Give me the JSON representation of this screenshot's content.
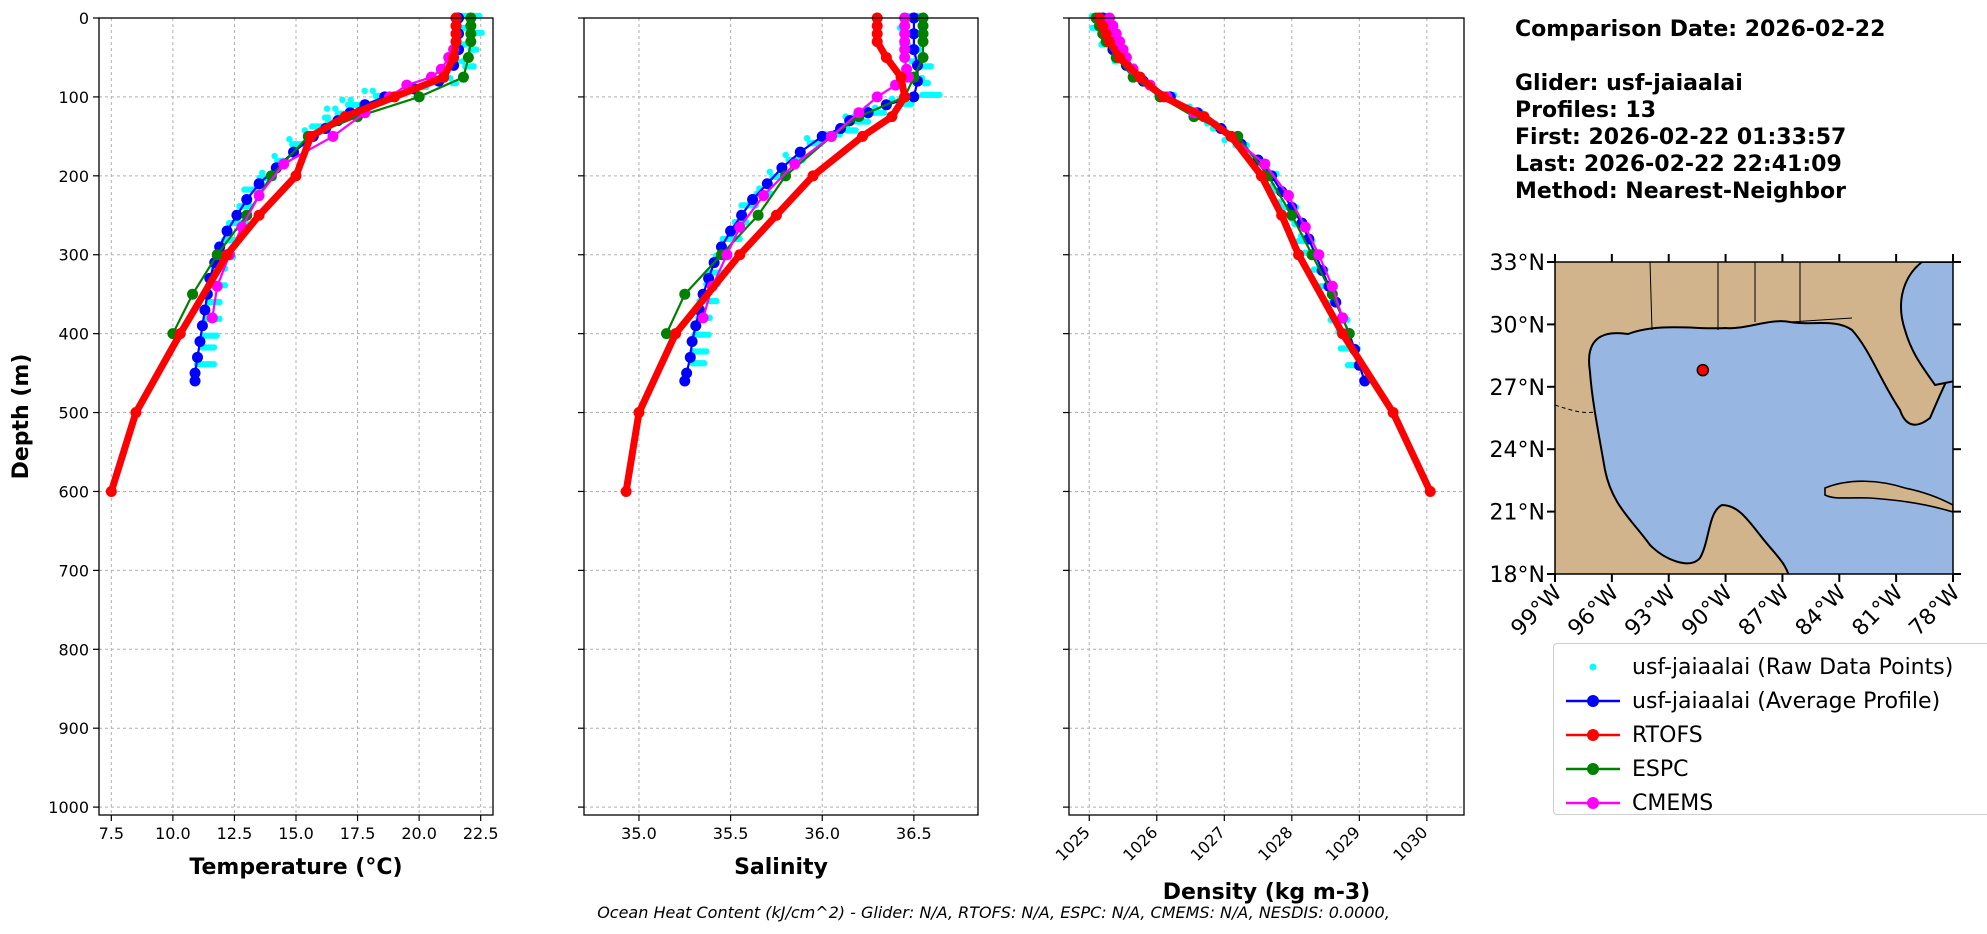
{
  "chart_data": {
    "type": "line",
    "shared_y": {
      "label": "Depth (m)",
      "ylim": [
        1010,
        0
      ],
      "ticks": [
        0,
        100,
        200,
        300,
        400,
        500,
        600,
        700,
        800,
        900,
        1000
      ],
      "grid": true
    },
    "panels": [
      {
        "id": "temperature",
        "xlabel": "Temperature (°C)",
        "xlim": [
          7.0,
          23.0
        ],
        "xticks": [
          7.5,
          10.0,
          12.5,
          15.0,
          17.5,
          20.0,
          22.5
        ],
        "tick_labels": [
          "7.5",
          "10.0",
          "12.5",
          "15.0",
          "17.5",
          "20.0",
          "22.5"
        ],
        "series": [
          {
            "name": "usf-jaiaalai (Raw Data Points)",
            "depth": [
              0,
              20,
              40,
              60,
              80,
              90,
              100,
              110,
              120,
              130,
              140,
              150,
              160,
              180,
              200,
              220,
              240,
              260,
              280,
              300,
              320,
              340,
              360,
              380,
              400,
              420,
              440
            ],
            "values": [
              22.2,
              22.2,
              22.1,
              21.9,
              21.3,
              20.0,
              18.3,
              17.3,
              16.8,
              16.4,
              16.0,
              15.6,
              15.1,
              14.4,
              13.8,
              13.2,
              12.9,
              12.6,
              12.3,
              12.1,
              11.9,
              11.8,
              11.7,
              11.6,
              11.5,
              11.4,
              11.3
            ]
          },
          {
            "name": "usf-jaiaalai (Average Profile)",
            "depth": [
              0,
              20,
              40,
              60,
              80,
              90,
              100,
              110,
              120,
              130,
              140,
              150,
              170,
              190,
              210,
              230,
              250,
              270,
              290,
              310,
              330,
              350,
              370,
              390,
              410,
              430,
              450,
              460
            ],
            "values": [
              21.6,
              21.6,
              21.6,
              21.4,
              20.8,
              19.8,
              18.6,
              17.8,
              17.2,
              16.7,
              16.2,
              15.7,
              14.9,
              14.2,
              13.5,
              13.0,
              12.6,
              12.2,
              11.9,
              11.7,
              11.5,
              11.4,
              11.3,
              11.2,
              11.1,
              11.0,
              10.9,
              10.9
            ]
          },
          {
            "name": "RTOFS",
            "depth": [
              0,
              10,
              20,
              30,
              50,
              75,
              100,
              125,
              150,
              200,
              250,
              300,
              400,
              500,
              600
            ],
            "values": [
              21.5,
              21.5,
              21.5,
              21.5,
              21.4,
              21.0,
              19.0,
              17.0,
              15.6,
              15.0,
              13.5,
              12.2,
              10.3,
              8.5,
              7.5
            ]
          },
          {
            "name": "ESPC",
            "depth": [
              0,
              10,
              20,
              30,
              50,
              75,
              100,
              125,
              150,
              200,
              250,
              300,
              350,
              400
            ],
            "values": [
              22.1,
              22.1,
              22.1,
              22.1,
              22.0,
              21.8,
              20.0,
              17.5,
              15.5,
              14.0,
              13.0,
              11.8,
              10.8,
              10.0
            ]
          },
          {
            "name": "CMEMS",
            "depth": [
              0,
              10,
              20,
              30,
              40,
              50,
              65,
              75,
              85,
              100,
              120,
              150,
              185,
              225,
              265,
              300,
              340,
              380
            ],
            "values": [
              21.5,
              21.5,
              21.5,
              21.5,
              21.4,
              21.2,
              20.9,
              20.5,
              19.5,
              18.8,
              17.8,
              16.5,
              14.5,
              13.5,
              12.8,
              12.3,
              11.8,
              11.6
            ]
          }
        ]
      },
      {
        "id": "salinity",
        "xlabel": "Salinity",
        "xlim": [
          34.7,
          36.85
        ],
        "xticks": [
          35.0,
          35.5,
          36.0,
          36.5
        ],
        "tick_labels": [
          "35.0",
          "35.5",
          "36.0",
          "36.5"
        ],
        "series": [
          {
            "name": "usf-jaiaalai (Raw Data Points)",
            "depth": [
              0,
              20,
              40,
              60,
              80,
              100,
              110,
              120,
              130,
              140,
              150,
              160,
              180,
              200,
              220,
              240,
              260,
              280,
              300,
              320,
              340,
              360,
              380,
              400,
              420,
              440
            ],
            "values": [
              36.5,
              36.5,
              36.5,
              36.55,
              36.55,
              36.6,
              36.45,
              36.3,
              36.2,
              36.15,
              36.05,
              35.95,
              35.85,
              35.75,
              35.68,
              35.6,
              35.55,
              35.5,
              35.45,
              35.42,
              35.4,
              35.38,
              35.36,
              35.34,
              35.33,
              35.32
            ]
          },
          {
            "name": "usf-jaiaalai (Average Profile)",
            "depth": [
              0,
              20,
              40,
              60,
              80,
              100,
              110,
              120,
              130,
              140,
              150,
              170,
              190,
              210,
              230,
              250,
              270,
              290,
              310,
              330,
              350,
              370,
              390,
              410,
              430,
              450,
              460
            ],
            "values": [
              36.5,
              36.5,
              36.5,
              36.52,
              36.52,
              36.5,
              36.35,
              36.25,
              36.15,
              36.1,
              36.0,
              35.88,
              35.78,
              35.7,
              35.62,
              35.56,
              35.5,
              35.45,
              35.41,
              35.38,
              35.35,
              35.33,
              35.31,
              35.29,
              35.28,
              35.26,
              35.25
            ]
          },
          {
            "name": "RTOFS",
            "depth": [
              0,
              10,
              20,
              30,
              50,
              75,
              100,
              125,
              150,
              200,
              250,
              300,
              400,
              500,
              600
            ],
            "values": [
              36.3,
              36.3,
              36.3,
              36.3,
              36.35,
              36.43,
              36.45,
              36.38,
              36.22,
              35.95,
              35.75,
              35.55,
              35.2,
              35.0,
              34.93
            ]
          },
          {
            "name": "ESPC",
            "depth": [
              0,
              10,
              20,
              30,
              50,
              75,
              100,
              125,
              150,
              200,
              250,
              300,
              350,
              400
            ],
            "values": [
              36.55,
              36.55,
              36.55,
              36.55,
              36.55,
              36.5,
              36.45,
              36.2,
              36.05,
              35.8,
              35.65,
              35.45,
              35.25,
              35.15
            ]
          },
          {
            "name": "CMEMS",
            "depth": [
              0,
              10,
              20,
              30,
              40,
              50,
              65,
              75,
              85,
              100,
              120,
              150,
              185,
              225,
              265,
              300,
              340,
              380
            ],
            "values": [
              36.45,
              36.45,
              36.45,
              36.45,
              36.45,
              36.45,
              36.46,
              36.47,
              36.4,
              36.3,
              36.2,
              36.05,
              35.85,
              35.68,
              35.55,
              35.48,
              35.4,
              35.35
            ]
          }
        ]
      },
      {
        "id": "density",
        "xlabel": "Density (kg m-3)",
        "xlim": [
          1024.7,
          1030.55
        ],
        "xticks": [
          1025,
          1026,
          1027,
          1028,
          1029,
          1030
        ],
        "tick_labels": [
          "1025",
          "1026",
          "1027",
          "1028",
          "1029",
          "1030"
        ],
        "series": [
          {
            "name": "usf-jaiaalai (Raw Data Points)",
            "depth": [
              0,
              20,
              40,
              60,
              80,
              100,
              120,
              140,
              160,
              180,
              200,
              220,
              240,
              260,
              280,
              300,
              320,
              340,
              360,
              380,
              400,
              420,
              440
            ],
            "values": [
              1025.2,
              1025.25,
              1025.35,
              1025.55,
              1025.8,
              1026.15,
              1026.55,
              1026.9,
              1027.2,
              1027.45,
              1027.65,
              1027.8,
              1027.95,
              1028.1,
              1028.2,
              1028.3,
              1028.4,
              1028.5,
              1028.6,
              1028.7,
              1028.78,
              1028.86,
              1028.93
            ]
          },
          {
            "name": "usf-jaiaalai (Average Profile)",
            "depth": [
              0,
              20,
              40,
              60,
              80,
              100,
              120,
              140,
              160,
              180,
              200,
              220,
              240,
              260,
              280,
              300,
              320,
              340,
              360,
              380,
              400,
              420,
              440,
              460
            ],
            "values": [
              1025.2,
              1025.25,
              1025.35,
              1025.55,
              1025.8,
              1026.2,
              1026.6,
              1026.95,
              1027.25,
              1027.5,
              1027.7,
              1027.85,
              1028.0,
              1028.15,
              1028.25,
              1028.35,
              1028.45,
              1028.55,
              1028.65,
              1028.75,
              1028.85,
              1028.93,
              1029.0,
              1029.08
            ]
          },
          {
            "name": "RTOFS",
            "depth": [
              0,
              10,
              20,
              30,
              50,
              75,
              100,
              125,
              150,
              200,
              250,
              300,
              400,
              500,
              600
            ],
            "values": [
              1025.15,
              1025.2,
              1025.25,
              1025.3,
              1025.45,
              1025.75,
              1026.1,
              1026.7,
              1027.1,
              1027.55,
              1027.85,
              1028.1,
              1028.75,
              1029.5,
              1030.05
            ]
          },
          {
            "name": "ESPC",
            "depth": [
              0,
              10,
              20,
              30,
              50,
              75,
              100,
              125,
              150,
              200,
              250,
              300,
              350,
              400
            ],
            "values": [
              1025.1,
              1025.15,
              1025.2,
              1025.25,
              1025.4,
              1025.65,
              1026.05,
              1026.55,
              1027.2,
              1027.65,
              1028.0,
              1028.3,
              1028.6,
              1028.85
            ]
          },
          {
            "name": "CMEMS",
            "depth": [
              0,
              10,
              20,
              30,
              40,
              50,
              65,
              75,
              85,
              100,
              120,
              150,
              185,
              225,
              265,
              300,
              340,
              380
            ],
            "values": [
              1025.3,
              1025.35,
              1025.4,
              1025.45,
              1025.5,
              1025.55,
              1025.65,
              1025.75,
              1025.9,
              1026.15,
              1026.55,
              1027.1,
              1027.6,
              1027.95,
              1028.2,
              1028.4,
              1028.6,
              1028.75
            ]
          }
        ]
      }
    ],
    "series_styles": {
      "usf-jaiaalai (Raw Data Points)": {
        "color": "#00ffff",
        "style": "dots"
      },
      "usf-jaiaalai (Average Profile)": {
        "color": "#0000ff",
        "style": "line-marker"
      },
      "RTOFS": {
        "color": "#ff0000",
        "style": "thick-line-marker"
      },
      "ESPC": {
        "color": "#008000",
        "style": "line-marker"
      },
      "CMEMS": {
        "color": "#ff00ff",
        "style": "line-marker"
      }
    },
    "map": {
      "lat_ticks": [
        "33°N",
        "30°N",
        "27°N",
        "24°N",
        "21°N",
        "18°N"
      ],
      "lon_ticks": [
        "99°W",
        "96°W",
        "93°W",
        "90°W",
        "87°W",
        "84°W",
        "81°W",
        "78°W"
      ],
      "lat_range": [
        18,
        33
      ],
      "lon_range": [
        -99,
        -78
      ],
      "glider_location": {
        "lat": 27.8,
        "lon": -91.2
      },
      "land_color": "#d2b48c",
      "ocean_color": "#97b6e1"
    }
  },
  "info": {
    "comparison_date": "Comparison Date: 2026-02-22",
    "glider": "Glider: usf-jaiaalai",
    "profiles": "Profiles: 13",
    "first": "First: 2026-02-22 01:33:57",
    "last": "Last: 2026-02-22 22:41:09",
    "method": "Method: Nearest-Neighbor"
  },
  "legend": [
    {
      "label": "usf-jaiaalai (Raw Data Points)",
      "color": "#00ffff",
      "style": "dots"
    },
    {
      "label": "usf-jaiaalai (Average Profile)",
      "color": "#0000ff",
      "style": "line-marker"
    },
    {
      "label": "RTOFS",
      "color": "#ff0000",
      "style": "line-marker"
    },
    {
      "label": "ESPC",
      "color": "#008000",
      "style": "line-marker"
    },
    {
      "label": "CMEMS",
      "color": "#ff00ff",
      "style": "line-marker"
    }
  ],
  "caption": "Ocean Heat Content (kJ/cm^2) - Glider: N/A,  RTOFS: N/A,  ESPC: N/A,  CMEMS: N/A,  NESDIS: 0.0000,"
}
